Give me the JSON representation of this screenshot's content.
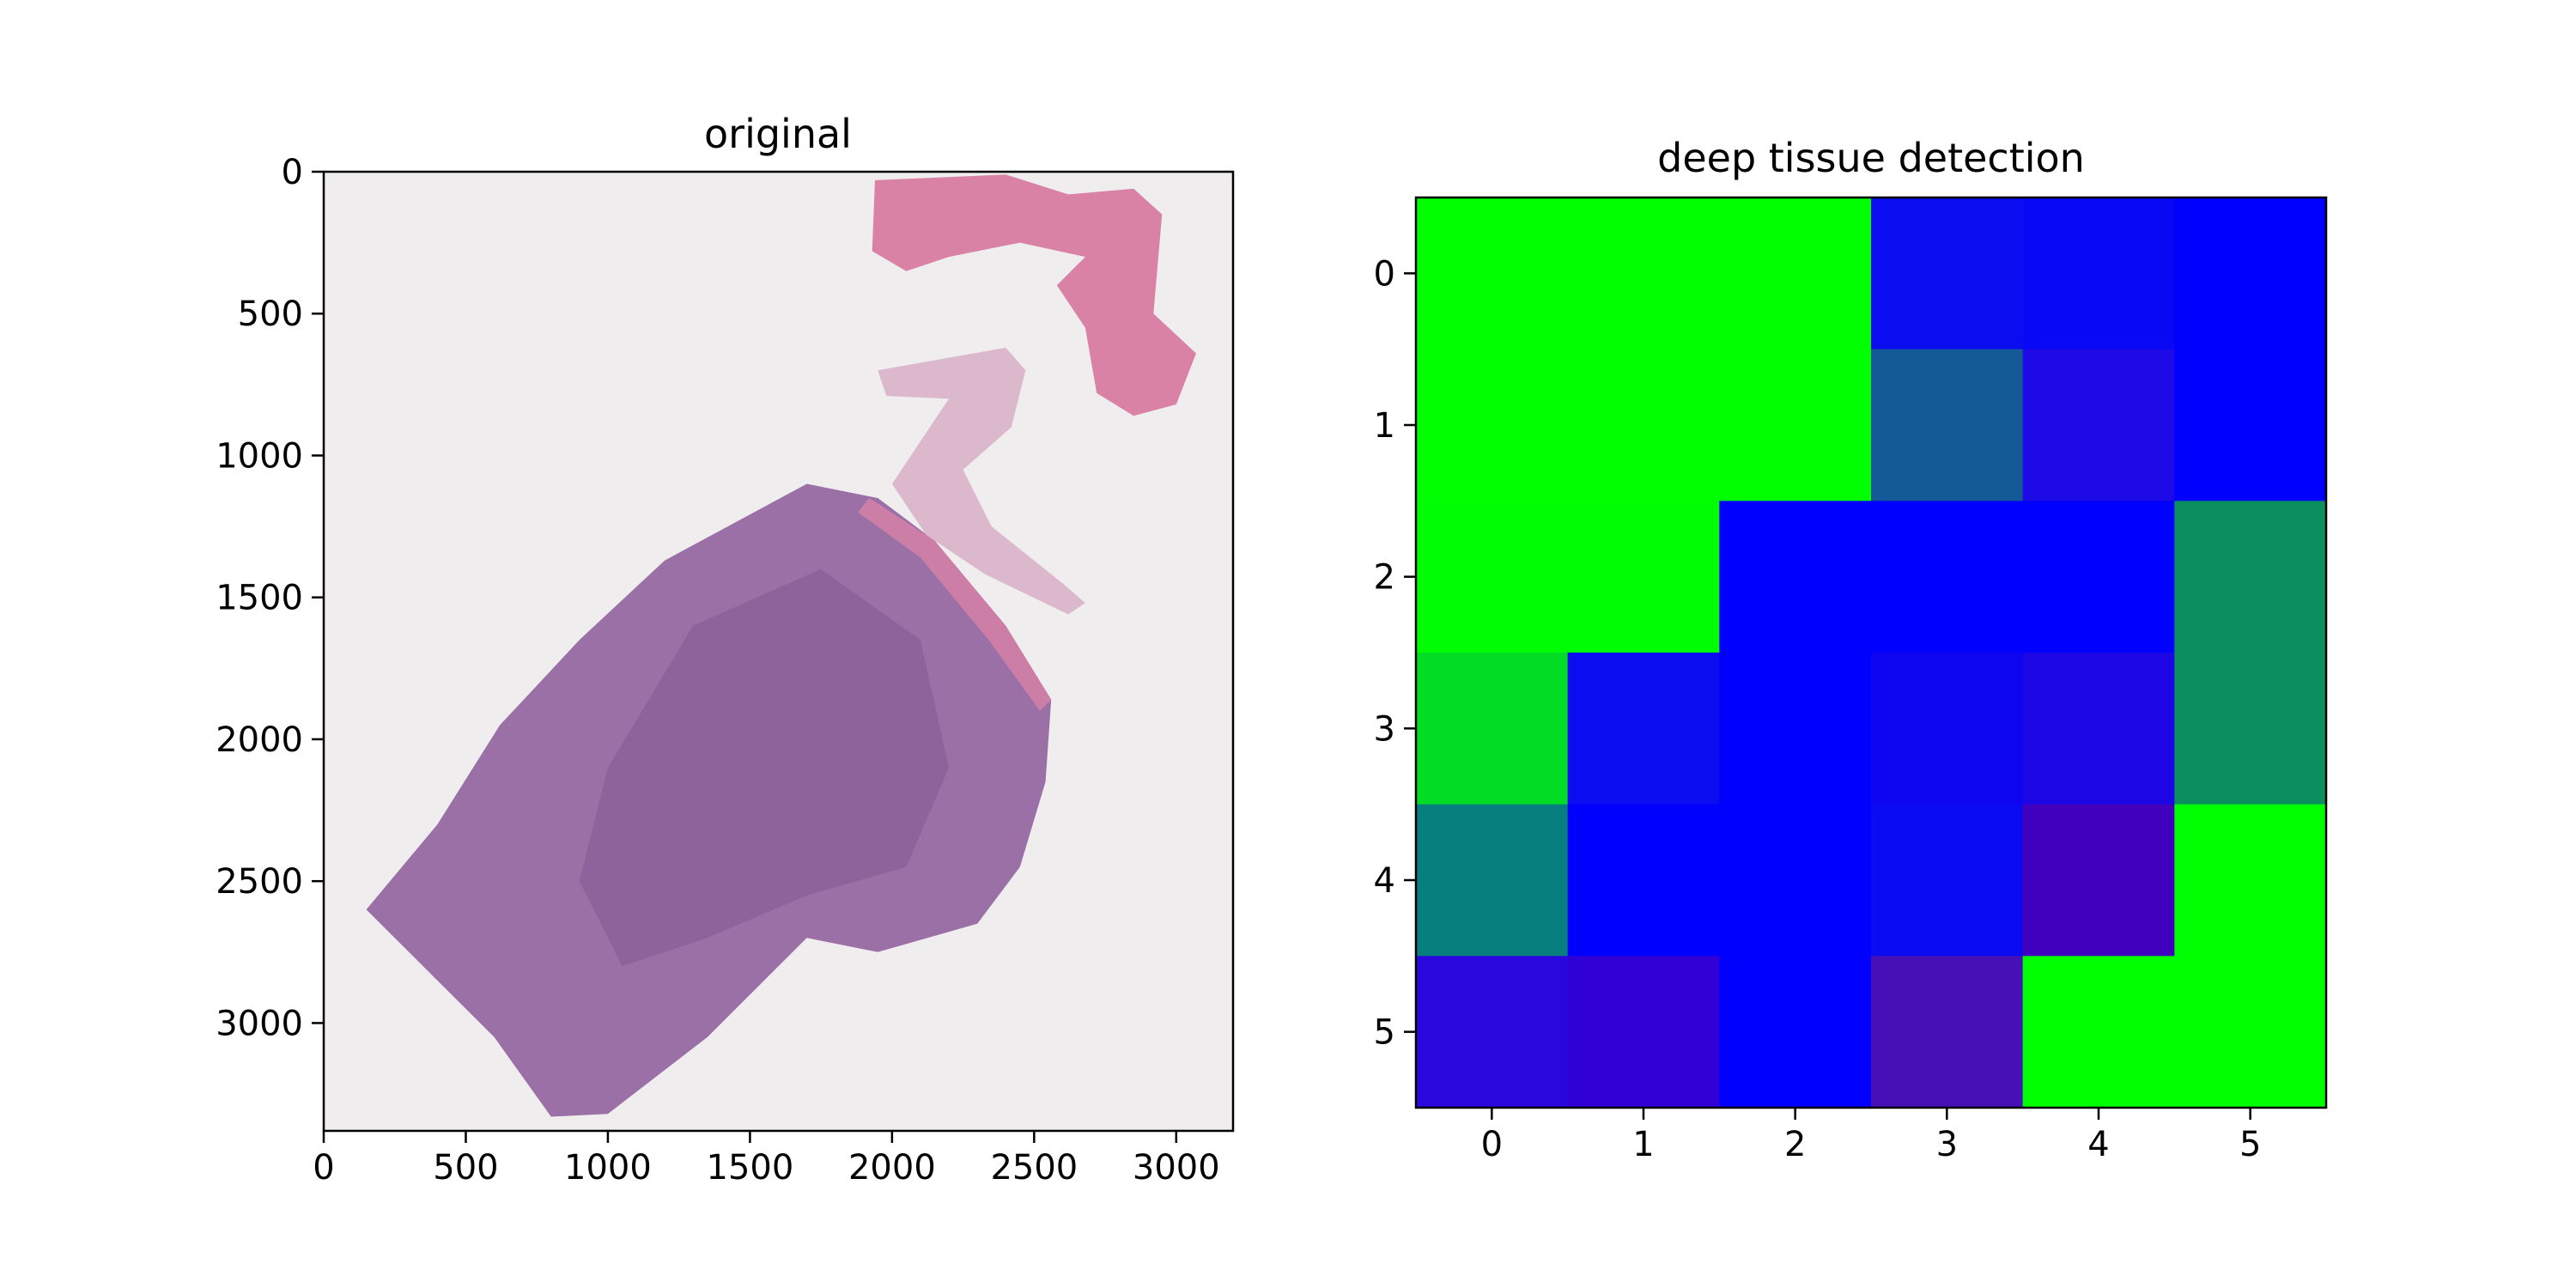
{
  "figure": {
    "background": "#ffffff"
  },
  "chart_data": [
    {
      "type": "image",
      "title": "original",
      "xlabel": "",
      "ylabel": "",
      "xlim": [
        0,
        3200
      ],
      "ylim": [
        3380,
        0
      ],
      "xticks": [
        0,
        500,
        1000,
        1500,
        2000,
        2500,
        3000
      ],
      "yticks": [
        0,
        500,
        1000,
        1500,
        2000,
        2500,
        3000
      ],
      "colors": {
        "background": "#efeded",
        "tissue_main": "#9b70a6",
        "tissue_dark": "#7f5a92",
        "tissue_pink": "#d982a6",
        "stroma_light": "#dcb8cc"
      }
    },
    {
      "type": "heatmap",
      "title": "deep tissue detection",
      "xlabel": "",
      "ylabel": "",
      "xticks": [
        0,
        1,
        2,
        3,
        4,
        5
      ],
      "yticks": [
        0,
        1,
        2,
        3,
        4,
        5
      ],
      "cells": [
        [
          "#00ff00",
          "#00ff00",
          "#00ff00",
          "#0b0df0",
          "#0808f5",
          "#0000ff"
        ],
        [
          "#00ff00",
          "#00ff00",
          "#00ff00",
          "#145a96",
          "#1d0ae6",
          "#0000ff"
        ],
        [
          "#00fd04",
          "#00fd04",
          "#0000ff",
          "#0000ff",
          "#0000ff",
          "#0c8f5e"
        ],
        [
          "#03dc25",
          "#0c0cf0",
          "#0000ff",
          "#0d05f0",
          "#1c06e6",
          "#0c8f5e"
        ],
        [
          "#077f7f",
          "#0000ff",
          "#0000ff",
          "#0b0bf2",
          "#4000be",
          "#00ff00"
        ],
        [
          "#2a08dd",
          "#3000d6",
          "#0000ff",
          "#4610b7",
          "#00ff00",
          "#00ff00"
        ]
      ]
    }
  ]
}
